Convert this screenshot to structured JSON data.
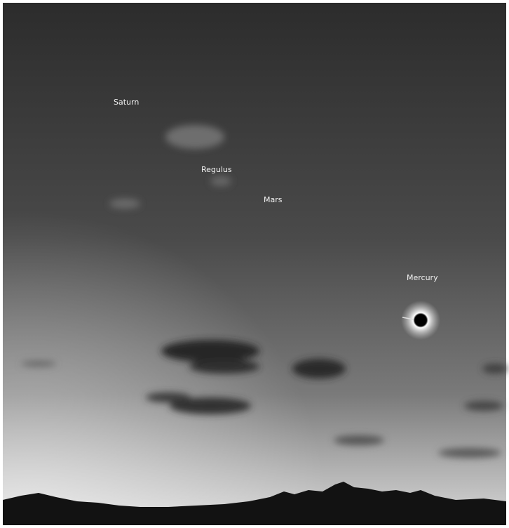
{
  "labels": [
    "Saturn",
    "Regulus",
    "Mars",
    "Mercury"
  ]
}
